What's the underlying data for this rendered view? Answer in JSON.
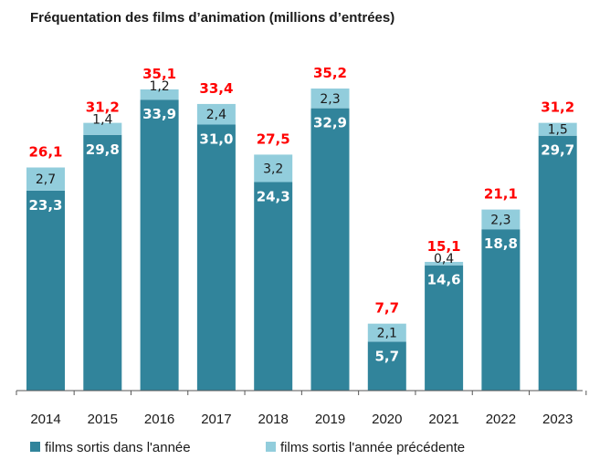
{
  "chart_data": {
    "type": "bar",
    "stacked": true,
    "title": "Fréquentation des films d’animation (millions d’entrées)",
    "categories": [
      "2014",
      "2015",
      "2016",
      "2017",
      "2018",
      "2019",
      "2020",
      "2021",
      "2022",
      "2023"
    ],
    "series": [
      {
        "name": "films sortis dans l'année",
        "color": "#31849b",
        "values": [
          23.3,
          29.8,
          33.9,
          31.0,
          24.3,
          32.9,
          5.7,
          14.6,
          18.8,
          29.7
        ],
        "labels": [
          "23,3",
          "29,8",
          "33,9",
          "31,0",
          "24,3",
          "32,9",
          "5,7",
          "14,6",
          "18,8",
          "29,7"
        ]
      },
      {
        "name": "films sortis l'année précédente",
        "color": "#92cddc",
        "values": [
          2.7,
          1.4,
          1.2,
          2.4,
          3.2,
          2.3,
          2.1,
          0.4,
          2.3,
          1.5
        ],
        "labels": [
          "2,7",
          "1,4",
          "1,2",
          "2,4",
          "3,2",
          "2,3",
          "2,1",
          "0,4",
          "2,3",
          "1,5"
        ]
      }
    ],
    "totals": {
      "color": "#ff0000",
      "values": [
        26.1,
        31.2,
        35.1,
        33.4,
        27.5,
        35.2,
        7.7,
        15.1,
        21.1,
        31.2
      ],
      "labels": [
        "26,1",
        "31,2",
        "35,1",
        "33,4",
        "27,5",
        "35,2",
        "7,7",
        "15,1",
        "21,1",
        "31,2"
      ]
    },
    "ylim": [
      0,
      35.2
    ],
    "grid": false,
    "legend_position": "bottom-left"
  }
}
